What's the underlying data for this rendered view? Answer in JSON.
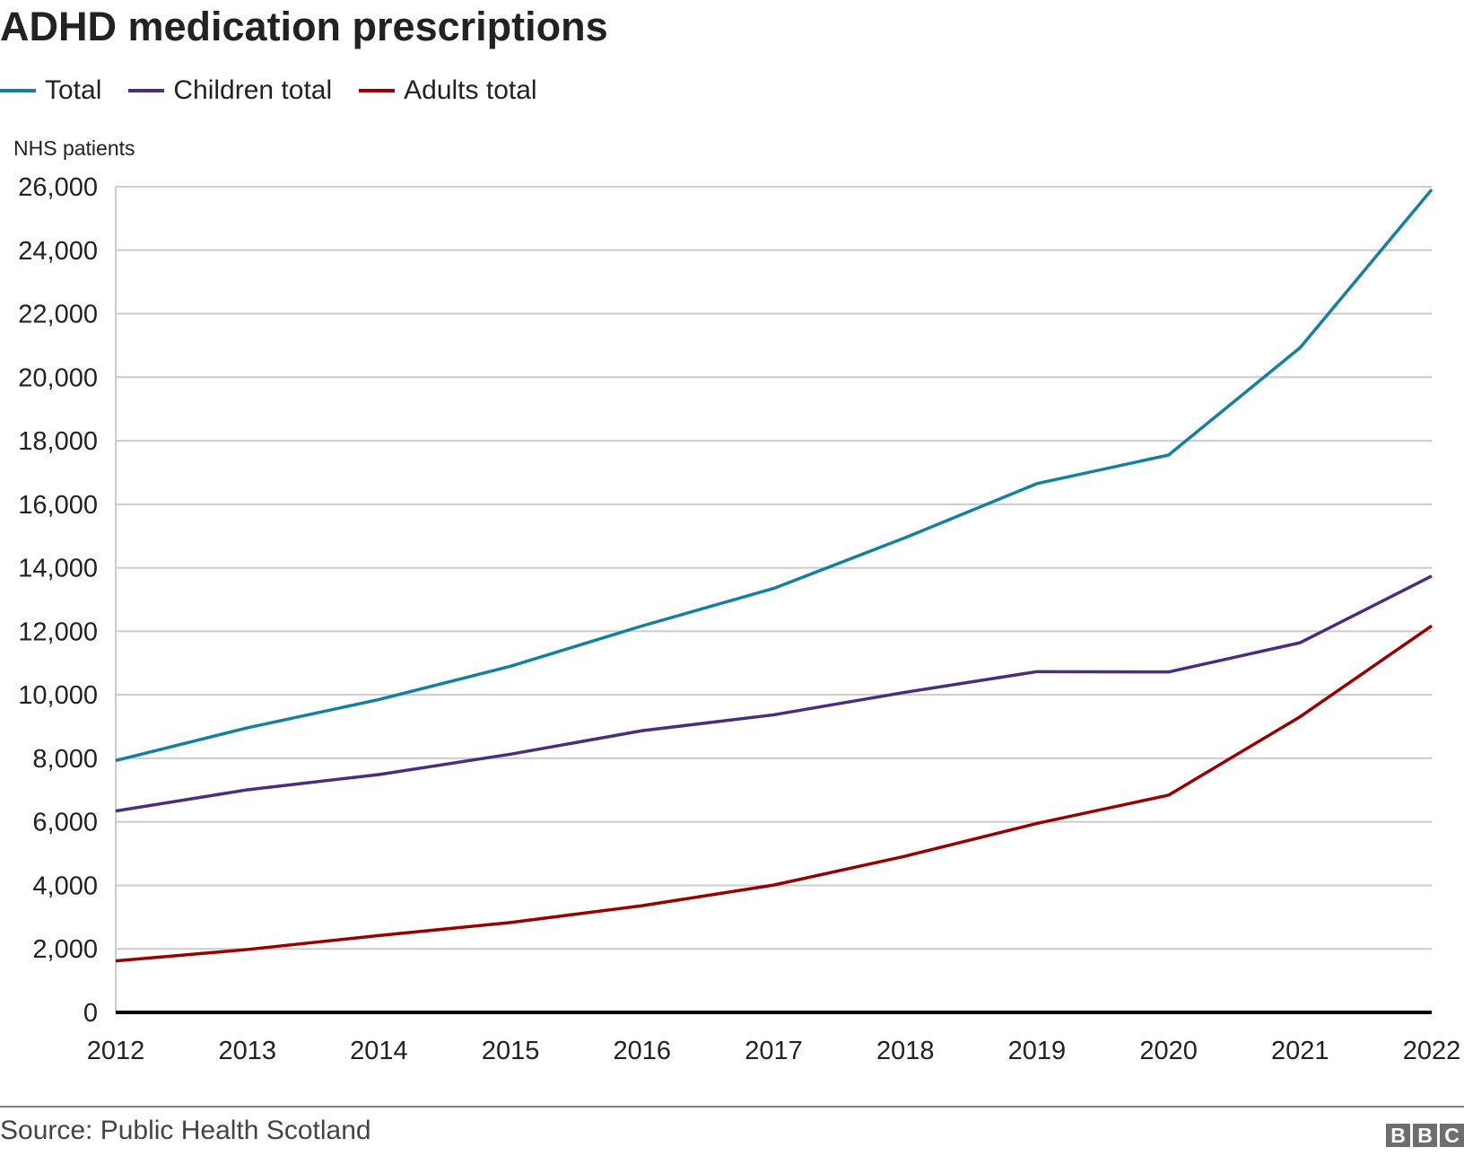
{
  "chart_data": {
    "type": "line",
    "title": "ADHD medication prescriptions",
    "ylabel": "NHS patients",
    "xlabel": "",
    "x": [
      2012,
      2013,
      2014,
      2015,
      2016,
      2017,
      2018,
      2019,
      2020,
      2021,
      2022
    ],
    "ylim": [
      0,
      26000
    ],
    "yticks": [
      0,
      2000,
      4000,
      6000,
      8000,
      10000,
      12000,
      14000,
      16000,
      18000,
      20000,
      22000,
      24000,
      26000
    ],
    "ytick_labels": [
      "0",
      "2,000",
      "4,000",
      "6,000",
      "8,000",
      "10,000",
      "12,000",
      "14,000",
      "16,000",
      "18,000",
      "20,000",
      "22,000",
      "24,000",
      "26,000"
    ],
    "grid": true,
    "legend_position": "top-left",
    "series": [
      {
        "name": "Total",
        "color": "#1380A1",
        "values": [
          7930,
          8960,
          9850,
          10900,
          12170,
          13350,
          14950,
          16650,
          17550,
          20930,
          25910
        ]
      },
      {
        "name": "Children total",
        "color": "#4B2D7F",
        "values": [
          6340,
          7010,
          7490,
          8130,
          8870,
          9370,
          10080,
          10730,
          10720,
          11640,
          13740
        ]
      },
      {
        "name": "Adults total",
        "color": "#990000",
        "values": [
          1620,
          1980,
          2420,
          2830,
          3360,
          4010,
          4920,
          5950,
          6840,
          9310,
          12170
        ]
      }
    ]
  },
  "footer": {
    "source": "Source: Public Health Scotland",
    "logo": "BBC",
    "logo_letters": [
      "B",
      "B",
      "C"
    ]
  }
}
